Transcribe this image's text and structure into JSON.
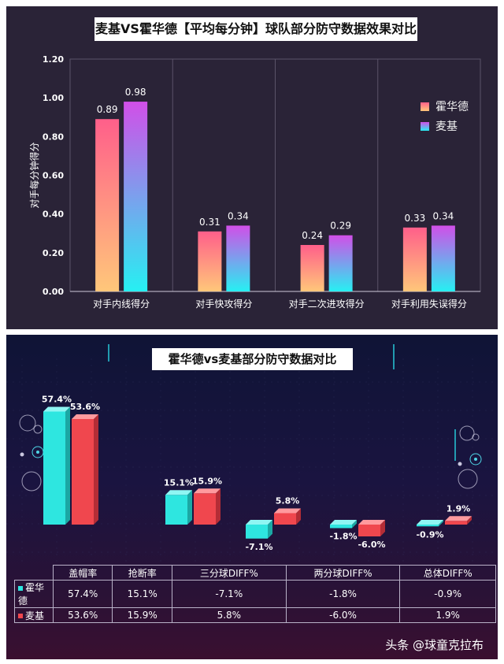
{
  "chart1": {
    "title": "麦基VS霍华德【平均每分钟】球队部分防守数据效果对比",
    "chart_data": {
      "type": "bar",
      "title": "麦基VS霍华德【平均每分钟】球队部分防守数据效果对比",
      "categories": [
        "对手内线得分",
        "对手快攻得分",
        "对手二次进攻得分",
        "对手利用失误得分"
      ],
      "series": [
        {
          "name": "霍华德",
          "values": [
            0.89,
            0.31,
            0.24,
            0.33
          ],
          "labels": [
            "0.89",
            "0.31",
            "0.24",
            "0.33"
          ]
        },
        {
          "name": "麦基",
          "values": [
            0.98,
            0.34,
            0.29,
            0.34
          ],
          "labels": [
            "0.98",
            "0.34",
            "0.29",
            "0.34"
          ]
        }
      ],
      "ylabel": "对手每分钟得分",
      "ylim": [
        0,
        1.2
      ],
      "yticks": [
        "0.00",
        "0.20",
        "0.40",
        "0.60",
        "0.80",
        "1.00",
        "1.20"
      ],
      "legend": "right",
      "colors": {
        "huoward_top": "#ff5f8a",
        "huoward_bottom": "#ffc77a",
        "mcgee_top": "#d14fe8",
        "mcgee_bottom": "#26f0f2"
      }
    }
  },
  "chart2": {
    "title": "霍华德vs麦基部分防守数据对比",
    "chart_data": {
      "type": "bar",
      "title": "霍华德vs麦基部分防守数据对比",
      "categories": [
        "盖帽率",
        "抢断率",
        "三分球DIFF%",
        "两分球DIFF%",
        "总体DIFF%"
      ],
      "series": [
        {
          "name": "霍华德",
          "values": [
            57.4,
            15.1,
            -7.1,
            -1.8,
            -0.9
          ],
          "labels": [
            "57.4%",
            "15.1%",
            "-7.1%",
            "-1.8%",
            "-0.9%"
          ]
        },
        {
          "name": "麦基",
          "values": [
            53.6,
            15.9,
            5.8,
            -6.0,
            1.9
          ],
          "labels": [
            "53.6%",
            "15.9%",
            "5.8%",
            "-6.0%",
            "1.9%"
          ]
        }
      ],
      "colors": {
        "huoward": "#2ee6e0",
        "mcgee": "#f0474e"
      }
    },
    "table": {
      "headers": [
        "盖帽率",
        "抢断率",
        "三分球DIFF%",
        "两分球DIFF%",
        "总体DIFF%"
      ],
      "rows": [
        {
          "name": "霍华德",
          "cells": [
            "57.4%",
            "15.1%",
            "-7.1%",
            "-1.8%",
            "-0.9%"
          ]
        },
        {
          "name": "麦基",
          "cells": [
            "53.6%",
            "15.9%",
            "5.8%",
            "-6.0%",
            "1.9%"
          ]
        }
      ]
    }
  },
  "watermark": "头条 @球童克拉布"
}
